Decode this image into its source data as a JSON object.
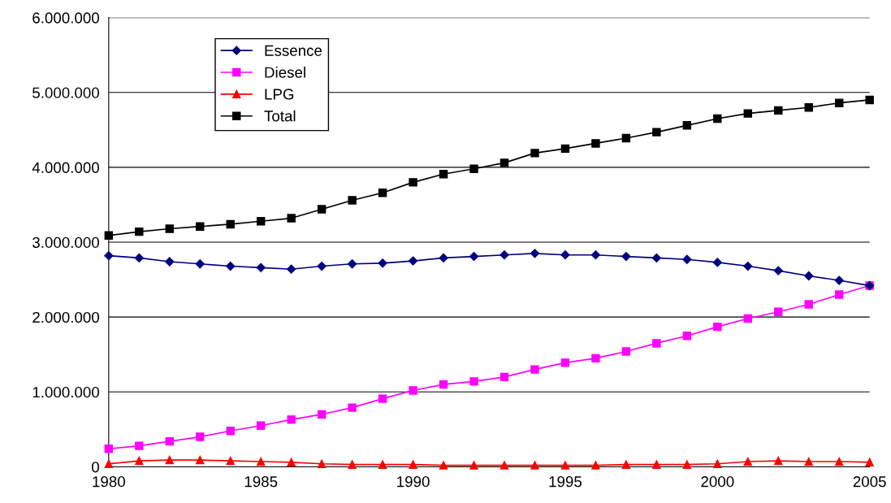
{
  "chart_data": {
    "type": "line",
    "x": [
      1980,
      1981,
      1982,
      1983,
      1984,
      1985,
      1986,
      1987,
      1988,
      1989,
      1990,
      1991,
      1992,
      1993,
      1994,
      1995,
      1996,
      1997,
      1998,
      1999,
      2000,
      2001,
      2002,
      2003,
      2004,
      2005
    ],
    "series": [
      {
        "name": "Essence",
        "color": "#000080",
        "marker": "diamond",
        "values": [
          2820000,
          2790000,
          2740000,
          2710000,
          2680000,
          2660000,
          2640000,
          2680000,
          2710000,
          2720000,
          2750000,
          2790000,
          2810000,
          2830000,
          2850000,
          2830000,
          2830000,
          2810000,
          2790000,
          2770000,
          2730000,
          2680000,
          2620000,
          2550000,
          2490000,
          2420000
        ]
      },
      {
        "name": "Diesel",
        "color": "#ff00ff",
        "marker": "square",
        "values": [
          240000,
          280000,
          340000,
          400000,
          480000,
          550000,
          630000,
          700000,
          790000,
          910000,
          1020000,
          1100000,
          1140000,
          1200000,
          1300000,
          1390000,
          1450000,
          1540000,
          1650000,
          1750000,
          1870000,
          1980000,
          2070000,
          2170000,
          2300000,
          2420000
        ]
      },
      {
        "name": "LPG",
        "color": "#ff0000",
        "marker": "triangle",
        "values": [
          40000,
          80000,
          90000,
          90000,
          80000,
          70000,
          60000,
          40000,
          30000,
          30000,
          30000,
          20000,
          20000,
          20000,
          20000,
          20000,
          20000,
          30000,
          30000,
          30000,
          40000,
          70000,
          80000,
          70000,
          70000,
          60000
        ]
      },
      {
        "name": "Total",
        "color": "#000000",
        "marker": "square",
        "values": [
          3090000,
          3140000,
          3180000,
          3210000,
          3240000,
          3280000,
          3320000,
          3440000,
          3560000,
          3660000,
          3800000,
          3910000,
          3980000,
          4060000,
          4190000,
          4250000,
          4320000,
          4390000,
          4470000,
          4560000,
          4650000,
          4720000,
          4760000,
          4800000,
          4860000,
          4900000
        ]
      }
    ],
    "xlim": [
      1980,
      2005
    ],
    "xticks": [
      1980,
      1985,
      1990,
      1995,
      2000,
      2005
    ],
    "ylim": [
      0,
      6000000
    ],
    "yticks": [
      0,
      {
        "value": 1000000,
        "label": "1.000.000"
      },
      {
        "value": 2000000,
        "label": "2.000.000"
      },
      {
        "value": 3000000,
        "label": "3.000.000"
      },
      {
        "value": 4000000,
        "label": "4.000.000"
      },
      {
        "value": 5000000,
        "label": "5.000.000"
      },
      {
        "value": 6000000,
        "label": "6.000.000"
      }
    ],
    "grid": "y",
    "legend": "top left",
    "line_style": "solid"
  }
}
